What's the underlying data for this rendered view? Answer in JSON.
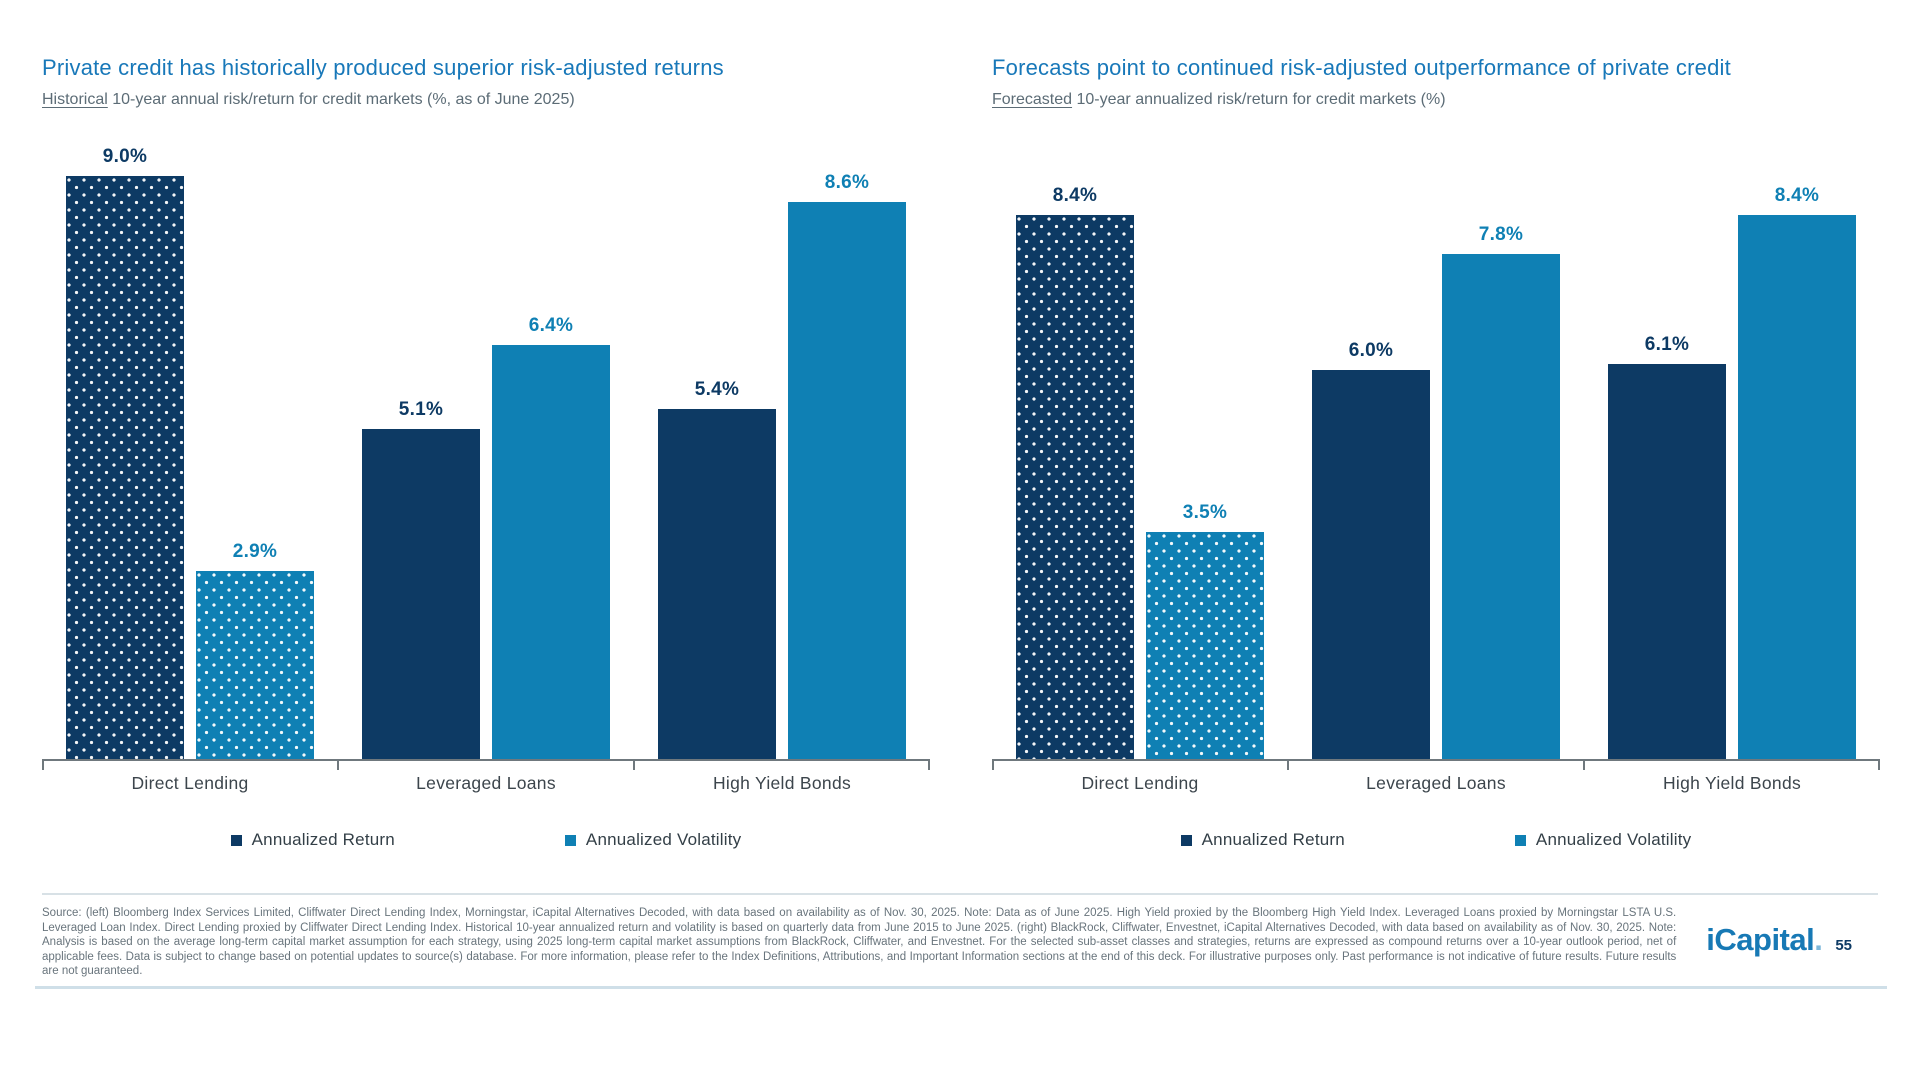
{
  "chart_data": [
    {
      "type": "bar",
      "title": "Private credit has historically produced superior risk-adjusted returns",
      "subtitle_lead": "Historical",
      "subtitle_rest": " 10-year annual risk/return for credit markets (%, as of June 2025)",
      "categories": [
        "Direct Lending",
        "Leveraged Loans",
        "High Yield Bonds"
      ],
      "series": [
        {
          "name": "Annualized Return",
          "color": "#0d3a64",
          "values": [
            9.0,
            5.1,
            5.4
          ],
          "labels": [
            "9.0%",
            "5.1%",
            "5.4%"
          ]
        },
        {
          "name": "Annualized Volatility",
          "color": "#0f80b4",
          "values": [
            2.9,
            6.4,
            8.6
          ],
          "labels": [
            "2.9%",
            "6.4%",
            "8.6%"
          ]
        }
      ],
      "ylim": [
        0,
        9.45
      ],
      "grid": false,
      "legend_position": "bottom",
      "pattern_note": "Direct Lending bars filled with white dot pattern"
    },
    {
      "type": "bar",
      "title": "Forecasts point to continued risk-adjusted outperformance of private credit",
      "subtitle_lead": "Forecasted",
      "subtitle_rest": " 10-year annualized risk/return for credit markets (%)",
      "categories": [
        "Direct Lending",
        "Leveraged Loans",
        "High Yield Bonds"
      ],
      "series": [
        {
          "name": "Annualized Return",
          "color": "#0d3a64",
          "values": [
            8.4,
            6.0,
            6.1
          ],
          "labels": [
            "8.4%",
            "6.0%",
            "6.1%"
          ]
        },
        {
          "name": "Annualized Volatility",
          "color": "#0f80b4",
          "values": [
            3.5,
            7.8,
            8.4
          ],
          "labels": [
            "3.5%",
            "7.8%",
            "8.4%"
          ]
        }
      ],
      "ylim": [
        0,
        9.45
      ],
      "grid": false,
      "legend_position": "bottom",
      "pattern_note": "Direct Lending bars filled with white dot pattern"
    }
  ],
  "colors": {
    "title_blue": "#1878b9",
    "return_navy": "#0d3a64",
    "volatility_blue": "#0f80b4",
    "subtitle_gray": "#5c6c76",
    "footer_gray": "#68747c"
  },
  "footer": {
    "source_text": "Source: (left) Bloomberg Index Services Limited, Cliffwater Direct Lending Index, Morningstar, iCapital Alternatives Decoded, with data based on availability as of Nov. 30, 2025. Note: Data as of June 2025. High Yield proxied by the Bloomberg High Yield Index. Leveraged Loans proxied by Morningstar LSTA U.S. Leveraged Loan Index. Direct Lending proxied by Cliffwater Direct Lending Index. Historical 10-year annualized return and volatility is based on quarterly data from June 2015 to June 2025. (right) BlackRock, Cliffwater, Envestnet, iCapital Alternatives Decoded, with data based on availability as of Nov. 30, 2025. Note: Analysis is based on the average long-term capital market assumption for each strategy, using 2025 long-term capital market assumptions from BlackRock, Cliffwater, and Envestnet. For the selected sub-asset classes and strategies, returns are expressed as compound returns over a 10-year outlook period, net of applicable fees. Data is subject to change based on potential updates to source(s) database. For more information, please refer to the Index Definitions, Attributions, and Important Information sections at the end of this deck. For illustrative purposes only. Past performance is not indicative of future results. Future results are not guaranteed.",
    "logo_text": "iCapital",
    "logo_dot": ".",
    "page_number": "55"
  }
}
